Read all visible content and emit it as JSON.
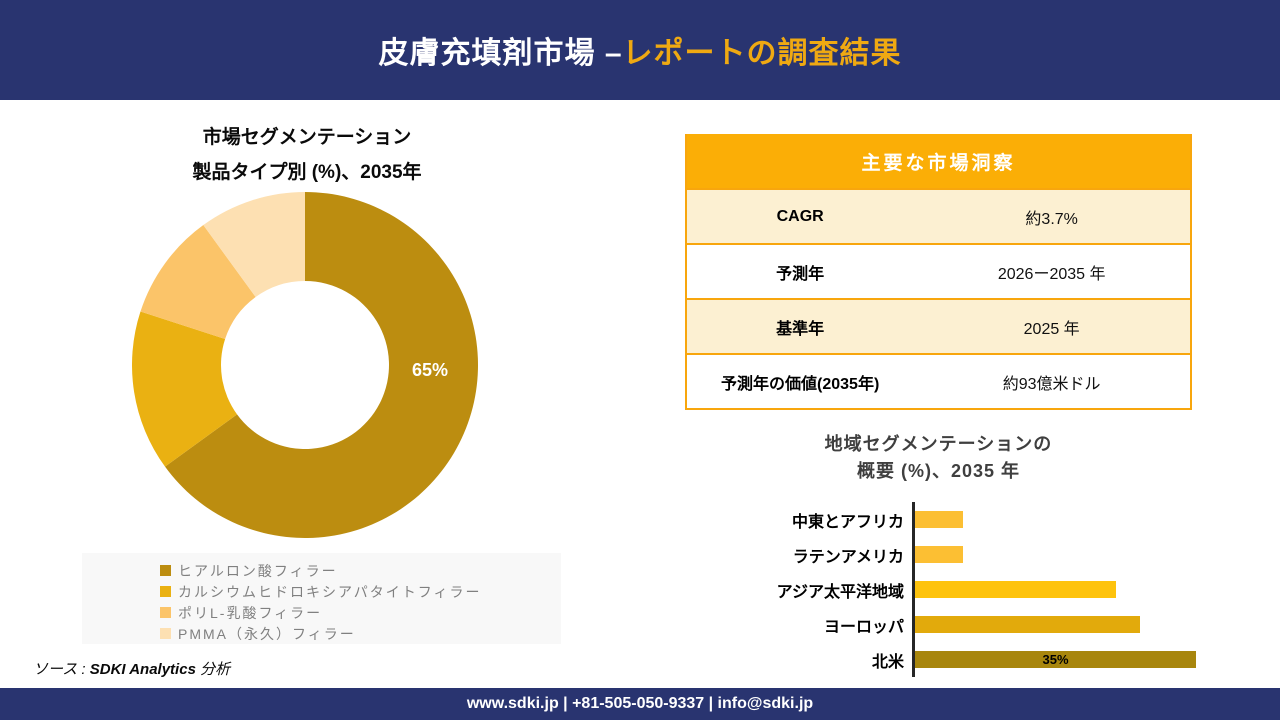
{
  "header": {
    "title_white": "皮膚充填剤市場 –",
    "title_gold": "レポートの調査結果"
  },
  "colors": {
    "navy": "#293470",
    "header_accent": "#EFA912",
    "table_header_bg": "#FBAE06",
    "table_border": "#F8A60D",
    "table_row_alt_bg": "#FCF0D2",
    "legend_panel_bg": "#F8F8F8",
    "legend_text": "#808080",
    "bar_axis": "#262626",
    "bar_title_text": "#3F3F3F"
  },
  "chart_data": [
    {
      "type": "pie",
      "subtype": "donut",
      "title": "市場セグメンテーション",
      "subtitle": "製品タイプ別 (%)、2035年",
      "labels": [
        "ヒアルロン酸フィラー",
        "カルシウムヒドロキシアパタイトフィラー",
        "ポリL-乳酸フィラー",
        "PMMA（永久）フィラー"
      ],
      "values": [
        65,
        15,
        10,
        10
      ],
      "colors": [
        "#BC8D10",
        "#EAB112",
        "#FBC469",
        "#FDE0B2"
      ],
      "data_label": {
        "slice": "ヒアルロン酸フィラー",
        "text": "65%"
      },
      "legend_position": "bottom"
    },
    {
      "type": "bar",
      "orientation": "horizontal",
      "title": "地域セグメンテーションの",
      "subtitle": "概要 (%)、2035 年",
      "categories": [
        "中東とアフリカ",
        "ラテンアメリカ",
        "アジア太平洋地域",
        "ヨーロッパ",
        "北米"
      ],
      "values": [
        6,
        6,
        25,
        28,
        35
      ],
      "colors": [
        "#FCBF33",
        "#FCBF33",
        "#FEC30D",
        "#E2AA0C",
        "#A8860D"
      ],
      "data_label": {
        "category": "北米",
        "text": "35%"
      },
      "xlim": [
        0,
        36
      ],
      "grid": false,
      "legend_position": "none"
    }
  ],
  "insights_table": {
    "header": "主要な市場洞察",
    "rows": [
      {
        "label": "CAGR",
        "value": "約3.7%"
      },
      {
        "label": "予測年",
        "value": "2026ー2035 年"
      },
      {
        "label": "基準年",
        "value": "2025 年"
      },
      {
        "label": "予測年の価値(2035年)",
        "value": "約93億米ドル"
      }
    ]
  },
  "source": {
    "prefix": "ソース : ",
    "brand": "SDKI Analytics",
    "suffix": " 分析"
  },
  "footer": {
    "text": "www.sdki.jp | +81-505-050-9337 | info@sdki.jp"
  }
}
